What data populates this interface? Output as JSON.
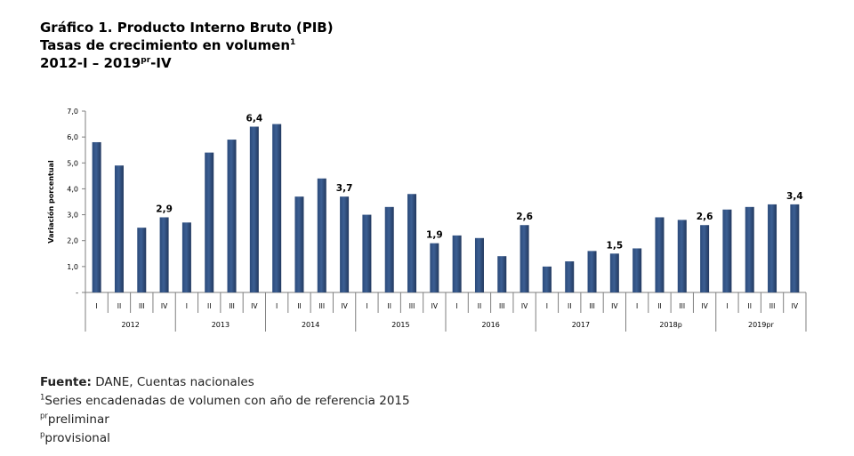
{
  "header": {
    "title": "Gráfico 1. Producto Interno Bruto (PIB)",
    "subtitle": "Tasas de crecimiento en volumen",
    "subtitle_note": "1",
    "period_start": "2012-I – 2019",
    "period_sup": "pr",
    "period_end": "-IV"
  },
  "footer": {
    "source_label": "Fuente:",
    "source_text": " DANE, Cuentas nacionales",
    "note1_mark": "1",
    "note1_text": "Series encadenadas de volumen con año de referencia 2015",
    "note2_mark": "pr",
    "note2_text": "preliminar",
    "note3_mark": "p",
    "note3_text": "provisional"
  },
  "chart_data": {
    "type": "bar",
    "ylabel": "Variación porcentual",
    "ylim": [
      0,
      7
    ],
    "yticks": [
      {
        "value": 0,
        "label": "-"
      },
      {
        "value": 1,
        "label": "1,0"
      },
      {
        "value": 2,
        "label": "2,0"
      },
      {
        "value": 3,
        "label": "3,0"
      },
      {
        "value": 4,
        "label": "4,0"
      },
      {
        "value": 5,
        "label": "5,0"
      },
      {
        "value": 6,
        "label": "6,0"
      },
      {
        "value": 7,
        "label": "7,0"
      }
    ],
    "bar_color": "#3c5f93",
    "quarters": [
      "I",
      "II",
      "III",
      "IV"
    ],
    "years": [
      "2012",
      "2013",
      "2014",
      "2015",
      "2016",
      "2017",
      "2018p",
      "2019pr"
    ],
    "values": [
      5.8,
      4.9,
      2.5,
      2.9,
      2.7,
      5.4,
      5.9,
      6.4,
      6.5,
      3.7,
      4.4,
      3.7,
      3.0,
      3.3,
      3.8,
      1.9,
      2.2,
      2.1,
      1.4,
      2.6,
      1.0,
      1.2,
      1.6,
      1.5,
      1.7,
      2.9,
      2.8,
      2.6,
      3.2,
      3.3,
      3.4,
      3.4
    ],
    "data_labels": [
      {
        "index": 3,
        "text": "2,9"
      },
      {
        "index": 7,
        "text": "6,4"
      },
      {
        "index": 11,
        "text": "3,7"
      },
      {
        "index": 15,
        "text": "1,9"
      },
      {
        "index": 19,
        "text": "2,6"
      },
      {
        "index": 23,
        "text": "1,5"
      },
      {
        "index": 27,
        "text": "2,6"
      },
      {
        "index": 31,
        "text": "3,4"
      }
    ]
  }
}
